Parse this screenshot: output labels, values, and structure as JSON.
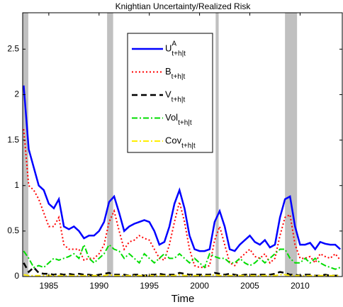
{
  "chart_data": {
    "type": "line",
    "title": "Knightian Uncertainty/Realized Risk",
    "x_label": "Time",
    "xlim": [
      1982.4,
      2014.2
    ],
    "ylim": [
      0,
      2.9
    ],
    "xticks": [
      1985,
      1990,
      1995,
      2000,
      2005,
      2010
    ],
    "yticks": [
      0,
      0.5,
      1,
      1.5,
      2,
      2.5
    ],
    "shading_color": "#c0c0c0",
    "recessions": [
      [
        1982.4,
        1982.96
      ],
      [
        1990.8,
        1991.4
      ],
      [
        2001.6,
        2001.9
      ],
      [
        2008.5,
        2009.7
      ]
    ],
    "legend_position": "upper center",
    "x": [
      1982.5,
      1983,
      1983.5,
      1984,
      1984.5,
      1985,
      1985.5,
      1986,
      1986.5,
      1987,
      1987.5,
      1988,
      1988.5,
      1989,
      1989.5,
      1990,
      1990.5,
      1991,
      1991.5,
      1992,
      1992.5,
      1993,
      1993.5,
      1994,
      1994.5,
      1995,
      1995.5,
      1996,
      1996.5,
      1997,
      1997.5,
      1998,
      1998.5,
      1999,
      1999.5,
      2000,
      2000.5,
      2001,
      2001.5,
      2002,
      2002.5,
      2003,
      2003.5,
      2004,
      2004.5,
      2005,
      2005.5,
      2006,
      2006.5,
      2007,
      2007.5,
      2008,
      2008.5,
      2009,
      2009.5,
      2010,
      2010.5,
      2011,
      2011.5,
      2012,
      2012.5,
      2013,
      2013.5,
      2014
    ],
    "series": [
      {
        "name": "U",
        "superscript": "A",
        "subscript": "t+h|t",
        "color": "#0000ff",
        "dash": "solid",
        "values": [
          2.1,
          1.4,
          1.2,
          1.0,
          0.95,
          0.8,
          0.75,
          0.85,
          0.55,
          0.52,
          0.55,
          0.5,
          0.42,
          0.45,
          0.45,
          0.5,
          0.6,
          0.82,
          0.88,
          0.7,
          0.5,
          0.55,
          0.58,
          0.6,
          0.62,
          0.6,
          0.5,
          0.35,
          0.38,
          0.55,
          0.8,
          0.95,
          0.75,
          0.45,
          0.3,
          0.28,
          0.28,
          0.3,
          0.6,
          0.72,
          0.55,
          0.3,
          0.28,
          0.35,
          0.4,
          0.45,
          0.38,
          0.35,
          0.4,
          0.32,
          0.35,
          0.65,
          0.85,
          0.88,
          0.55,
          0.35,
          0.35,
          0.37,
          0.3,
          0.38,
          0.36,
          0.35,
          0.35,
          0.3
        ]
      },
      {
        "name": "B",
        "subscript": "t+h|t",
        "color": "#ff0000",
        "dash": "dotted",
        "values": [
          1.62,
          1.0,
          0.95,
          0.85,
          0.7,
          0.55,
          0.55,
          0.65,
          0.35,
          0.3,
          0.3,
          0.3,
          0.18,
          0.2,
          0.2,
          0.25,
          0.35,
          0.6,
          0.72,
          0.5,
          0.3,
          0.38,
          0.4,
          0.45,
          0.42,
          0.4,
          0.3,
          0.2,
          0.18,
          0.35,
          0.6,
          0.82,
          0.6,
          0.3,
          0.12,
          0.1,
          0.1,
          0.12,
          0.4,
          0.55,
          0.35,
          0.15,
          0.12,
          0.2,
          0.25,
          0.3,
          0.22,
          0.2,
          0.25,
          0.15,
          0.2,
          0.45,
          0.65,
          0.68,
          0.35,
          0.2,
          0.2,
          0.22,
          0.15,
          0.25,
          0.22,
          0.2,
          0.25,
          0.18
        ]
      },
      {
        "name": "V",
        "subscript": "t+h|t",
        "color": "#000000",
        "dash": "dashed",
        "values": [
          0.15,
          0.05,
          0.1,
          0.04,
          0.03,
          0.03,
          0.02,
          0.03,
          0.02,
          0.03,
          0.02,
          0.03,
          0.02,
          0.02,
          0.01,
          0.02,
          0.03,
          0.04,
          0.02,
          0.02,
          0.02,
          0.01,
          0.02,
          0.02,
          0.01,
          0.02,
          0.02,
          0.03,
          0.02,
          0.02,
          0.02,
          0.04,
          0.03,
          0.02,
          0.02,
          0.02,
          0.02,
          0.02,
          0.04,
          0.03,
          0.02,
          0.03,
          0.02,
          0.01,
          0.02,
          0.02,
          0.02,
          0.02,
          0.02,
          0.02,
          0.03,
          0.05,
          0.04,
          0.02,
          0.02,
          0.01,
          0.02,
          0.02,
          0.01,
          0.01,
          0.02,
          0.01,
          0.01,
          0.01
        ]
      },
      {
        "name": "Vol",
        "subscript": "t+h|t",
        "color": "#00dd00",
        "dash": "dashdot",
        "values": [
          0.28,
          0.2,
          0.1,
          0.12,
          0.1,
          0.15,
          0.2,
          0.18,
          0.2,
          0.22,
          0.25,
          0.2,
          0.35,
          0.2,
          0.15,
          0.2,
          0.25,
          0.35,
          0.3,
          0.28,
          0.2,
          0.25,
          0.2,
          0.15,
          0.25,
          0.2,
          0.15,
          0.2,
          0.25,
          0.2,
          0.2,
          0.25,
          0.2,
          0.15,
          0.2,
          0.15,
          0.1,
          0.25,
          0.22,
          0.2,
          0.2,
          0.15,
          0.15,
          0.2,
          0.15,
          0.12,
          0.15,
          0.2,
          0.15,
          0.2,
          0.25,
          0.3,
          0.3,
          0.2,
          0.15,
          0.15,
          0.2,
          0.15,
          0.2,
          0.15,
          0.12,
          0.1,
          0.08,
          0.1
        ]
      },
      {
        "name": "Cov",
        "subscript": "t+h|t",
        "color": "#ffee00",
        "dash": "dashdot",
        "values": [
          0.02,
          0.01,
          0.01,
          0.01,
          0.01,
          0.01,
          0.01,
          0.01,
          0.01,
          0.01,
          0.01,
          0.01,
          0.01,
          0.01,
          0.01,
          0.01,
          0.01,
          0.02,
          0.01,
          0.01,
          0.01,
          0.01,
          0.01,
          0.01,
          0.01,
          0.01,
          0.01,
          0.01,
          0.01,
          0.01,
          0.01,
          0.02,
          0.01,
          0.01,
          0.01,
          0.01,
          0.01,
          0.01,
          0.02,
          0.01,
          0.01,
          0.01,
          0.01,
          0.01,
          0.01,
          0.01,
          0.01,
          0.01,
          0.01,
          0.01,
          0.01,
          0.02,
          0.02,
          0.01,
          0.01,
          0.01,
          0.01,
          0.01,
          0.01,
          0.01,
          0.01,
          0.01,
          0.01,
          0.01
        ]
      }
    ]
  }
}
